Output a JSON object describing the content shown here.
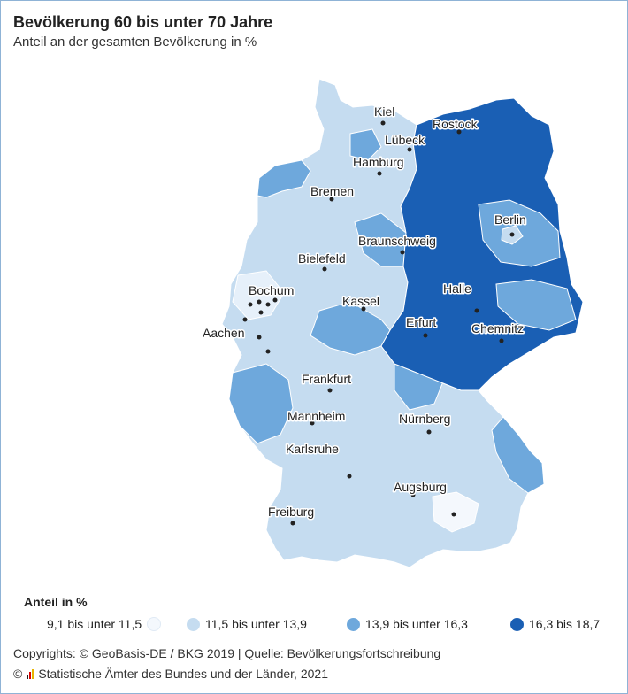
{
  "header": {
    "title": "Bevölkerung 60 bis unter 70 Jahre",
    "subtitle": "Anteil an der gesamten Bevölkerung in %"
  },
  "legend": {
    "title": "Anteil in %",
    "items": [
      {
        "label": "9,1 bis unter 11,5",
        "color": "#f4f8fd"
      },
      {
        "label": "11,5 bis unter 13,9",
        "color": "#c5dcf0"
      },
      {
        "label": "13,9 bis unter 16,3",
        "color": "#6ea8dc"
      },
      {
        "label": "16,3 bis 18,7",
        "color": "#1a5fb4"
      }
    ]
  },
  "cities": [
    {
      "name": "Kiel"
    },
    {
      "name": "Rostock"
    },
    {
      "name": "Lübeck"
    },
    {
      "name": "Hamburg"
    },
    {
      "name": "Bremen"
    },
    {
      "name": "Berlin"
    },
    {
      "name": "Braunschweig"
    },
    {
      "name": "Bielefeld"
    },
    {
      "name": "Bochum"
    },
    {
      "name": "Kassel"
    },
    {
      "name": "Halle"
    },
    {
      "name": "Aachen"
    },
    {
      "name": "Erfurt"
    },
    {
      "name": "Chemnitz"
    },
    {
      "name": "Frankfurt"
    },
    {
      "name": "Mannheim"
    },
    {
      "name": "Nürnberg"
    },
    {
      "name": "Karlsruhe"
    },
    {
      "name": "Augsburg"
    },
    {
      "name": "Freiburg"
    }
  ],
  "footer": {
    "credit_line1": "Copyrights: © GeoBasis-DE / BKG 2019 | Quelle: Bevölkerungsfortschreibung",
    "copyright_symbol": "©",
    "credit_line2": "Statistische Ämter des Bundes und der Länder, 2021"
  }
}
